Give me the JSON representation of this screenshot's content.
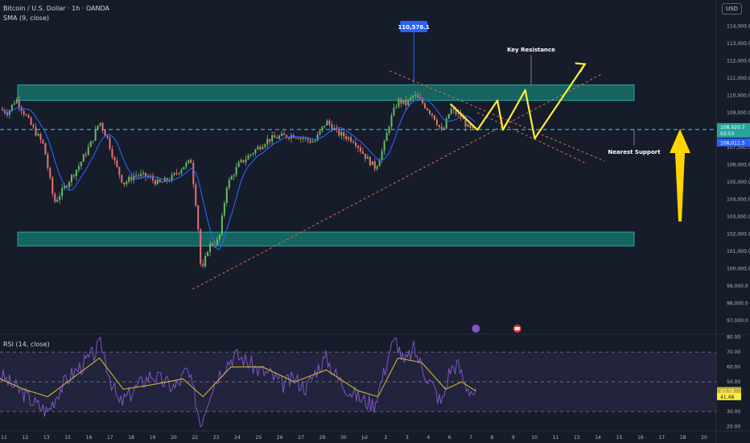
{
  "header": {
    "title": "Bitcoin / U.S. Dollar · 1h · OANDA",
    "indicator": "SMA (9, close)",
    "currency": "USD"
  },
  "rsi_panel": {
    "title": "RSI (14, close)"
  },
  "annotations": {
    "high_label": "110,576.1",
    "key_resistance": "Key Resistance",
    "nearest_support": "Nearest Support",
    "last_price": "108,020.7",
    "countdown": "02:53",
    "sma_value": "108,011.5",
    "rsi_value": "41.48",
    "rsi_sma_value": "43.79"
  },
  "colors": {
    "background": "#161c2a",
    "zone_fill": "#17a08c",
    "up_candle": "#66bb6a",
    "down_candle": "#e57373",
    "sma": "#2962ff",
    "dashed_level": "#26c6da",
    "trendline": "#e06c4b",
    "projection": "#ffeb3b",
    "rsi": "#7e57c2",
    "rsi_sma": "#c8b432"
  },
  "chart_data": [
    {
      "type": "candlestick",
      "title": "Bitcoin / U.S. Dollar · 1h · OANDA",
      "y_ticks": [
        97000,
        98000,
        99000,
        100000,
        101000,
        102000,
        103000,
        104000,
        105000,
        106000,
        107000,
        108000,
        109000,
        110000,
        111000,
        112000,
        113000,
        114000
      ],
      "ylim": [
        96200,
        115500
      ],
      "x_ticks": [
        "11",
        "12",
        "13",
        "15",
        "16",
        "17",
        "18",
        "19",
        "20",
        "22",
        "23",
        "24",
        "25",
        "26",
        "27",
        "29",
        "30",
        "Jul",
        "2",
        "3",
        "4",
        "6",
        "7",
        "8",
        "9",
        "10",
        "11",
        "13",
        "14",
        "15",
        "16",
        "17",
        "18",
        "20"
      ],
      "price_path": [
        {
          "t": 0,
          "p": 109200
        },
        {
          "t": 10,
          "p": 109000
        },
        {
          "t": 20,
          "p": 109800
        },
        {
          "t": 40,
          "p": 108200
        },
        {
          "t": 55,
          "p": 107100
        },
        {
          "t": 68,
          "p": 103800
        },
        {
          "t": 80,
          "p": 104600
        },
        {
          "t": 100,
          "p": 106000
        },
        {
          "t": 115,
          "p": 107300
        },
        {
          "t": 125,
          "p": 108500
        },
        {
          "t": 135,
          "p": 107500
        },
        {
          "t": 145,
          "p": 106000
        },
        {
          "t": 155,
          "p": 104900
        },
        {
          "t": 170,
          "p": 105400
        },
        {
          "t": 185,
          "p": 105300
        },
        {
          "t": 200,
          "p": 104900
        },
        {
          "t": 215,
          "p": 105200
        },
        {
          "t": 230,
          "p": 105900
        },
        {
          "t": 240,
          "p": 106200
        },
        {
          "t": 248,
          "p": 103000
        },
        {
          "t": 253,
          "p": 99600
        },
        {
          "t": 262,
          "p": 101300
        },
        {
          "t": 275,
          "p": 101600
        },
        {
          "t": 285,
          "p": 104800
        },
        {
          "t": 300,
          "p": 106000
        },
        {
          "t": 320,
          "p": 106800
        },
        {
          "t": 335,
          "p": 107400
        },
        {
          "t": 350,
          "p": 107600
        },
        {
          "t": 370,
          "p": 107700
        },
        {
          "t": 395,
          "p": 107300
        },
        {
          "t": 410,
          "p": 108500
        },
        {
          "t": 425,
          "p": 107800
        },
        {
          "t": 445,
          "p": 107400
        },
        {
          "t": 460,
          "p": 106400
        },
        {
          "t": 472,
          "p": 105800
        },
        {
          "t": 482,
          "p": 107000
        },
        {
          "t": 490,
          "p": 108500
        },
        {
          "t": 500,
          "p": 109700
        },
        {
          "t": 510,
          "p": 109500
        },
        {
          "t": 520,
          "p": 110000
        },
        {
          "t": 530,
          "p": 109600
        },
        {
          "t": 545,
          "p": 108800
        },
        {
          "t": 556,
          "p": 107800
        },
        {
          "t": 566,
          "p": 109200
        },
        {
          "t": 578,
          "p": 108800
        },
        {
          "t": 590,
          "p": 108000
        },
        {
          "t": 598,
          "p": 108000
        }
      ],
      "session_high": 110576.1,
      "zones": [
        {
          "from": 109700,
          "to": 110600
        },
        {
          "from": 101300,
          "to": 102100
        }
      ],
      "support_level": 108020.7
    },
    {
      "type": "line",
      "title": "RSI (14, close)",
      "y_ticks": [
        20,
        30,
        40,
        50,
        60,
        70,
        80
      ],
      "ylim": [
        17,
        82
      ],
      "band": [
        30,
        70
      ],
      "rsi_path": [
        {
          "t": 0,
          "p": 55
        },
        {
          "t": 15,
          "p": 48
        },
        {
          "t": 30,
          "p": 42
        },
        {
          "t": 45,
          "p": 35
        },
        {
          "t": 60,
          "p": 30
        },
        {
          "t": 75,
          "p": 45
        },
        {
          "t": 90,
          "p": 55
        },
        {
          "t": 105,
          "p": 62
        },
        {
          "t": 120,
          "p": 70
        },
        {
          "t": 127,
          "p": 76
        },
        {
          "t": 140,
          "p": 50
        },
        {
          "t": 150,
          "p": 35
        },
        {
          "t": 160,
          "p": 40
        },
        {
          "t": 175,
          "p": 48
        },
        {
          "t": 190,
          "p": 55
        },
        {
          "t": 205,
          "p": 50
        },
        {
          "t": 220,
          "p": 46
        },
        {
          "t": 235,
          "p": 58
        },
        {
          "t": 245,
          "p": 40
        },
        {
          "t": 252,
          "p": 22
        },
        {
          "t": 265,
          "p": 45
        },
        {
          "t": 280,
          "p": 60
        },
        {
          "t": 295,
          "p": 68
        },
        {
          "t": 310,
          "p": 64
        },
        {
          "t": 325,
          "p": 58
        },
        {
          "t": 340,
          "p": 55
        },
        {
          "t": 355,
          "p": 48
        },
        {
          "t": 370,
          "p": 52
        },
        {
          "t": 385,
          "p": 46
        },
        {
          "t": 400,
          "p": 60
        },
        {
          "t": 410,
          "p": 66
        },
        {
          "t": 425,
          "p": 52
        },
        {
          "t": 440,
          "p": 44
        },
        {
          "t": 455,
          "p": 38
        },
        {
          "t": 470,
          "p": 35
        },
        {
          "t": 482,
          "p": 55
        },
        {
          "t": 490,
          "p": 72
        },
        {
          "t": 498,
          "p": 78
        },
        {
          "t": 508,
          "p": 62
        },
        {
          "t": 520,
          "p": 72
        },
        {
          "t": 532,
          "p": 58
        },
        {
          "t": 545,
          "p": 46
        },
        {
          "t": 555,
          "p": 35
        },
        {
          "t": 565,
          "p": 58
        },
        {
          "t": 575,
          "p": 62
        },
        {
          "t": 585,
          "p": 48
        },
        {
          "t": 598,
          "p": 41.48
        }
      ],
      "rsi_sma_path": [
        {
          "t": 0,
          "p": 52
        },
        {
          "t": 30,
          "p": 45
        },
        {
          "t": 60,
          "p": 40
        },
        {
          "t": 90,
          "p": 52
        },
        {
          "t": 125,
          "p": 66
        },
        {
          "t": 155,
          "p": 45
        },
        {
          "t": 190,
          "p": 48
        },
        {
          "t": 230,
          "p": 52
        },
        {
          "t": 255,
          "p": 40
        },
        {
          "t": 290,
          "p": 60
        },
        {
          "t": 330,
          "p": 60
        },
        {
          "t": 370,
          "p": 50
        },
        {
          "t": 410,
          "p": 58
        },
        {
          "t": 450,
          "p": 44
        },
        {
          "t": 475,
          "p": 40
        },
        {
          "t": 500,
          "p": 66
        },
        {
          "t": 530,
          "p": 63
        },
        {
          "t": 560,
          "p": 45
        },
        {
          "t": 580,
          "p": 50
        },
        {
          "t": 598,
          "p": 43.79
        }
      ]
    }
  ]
}
